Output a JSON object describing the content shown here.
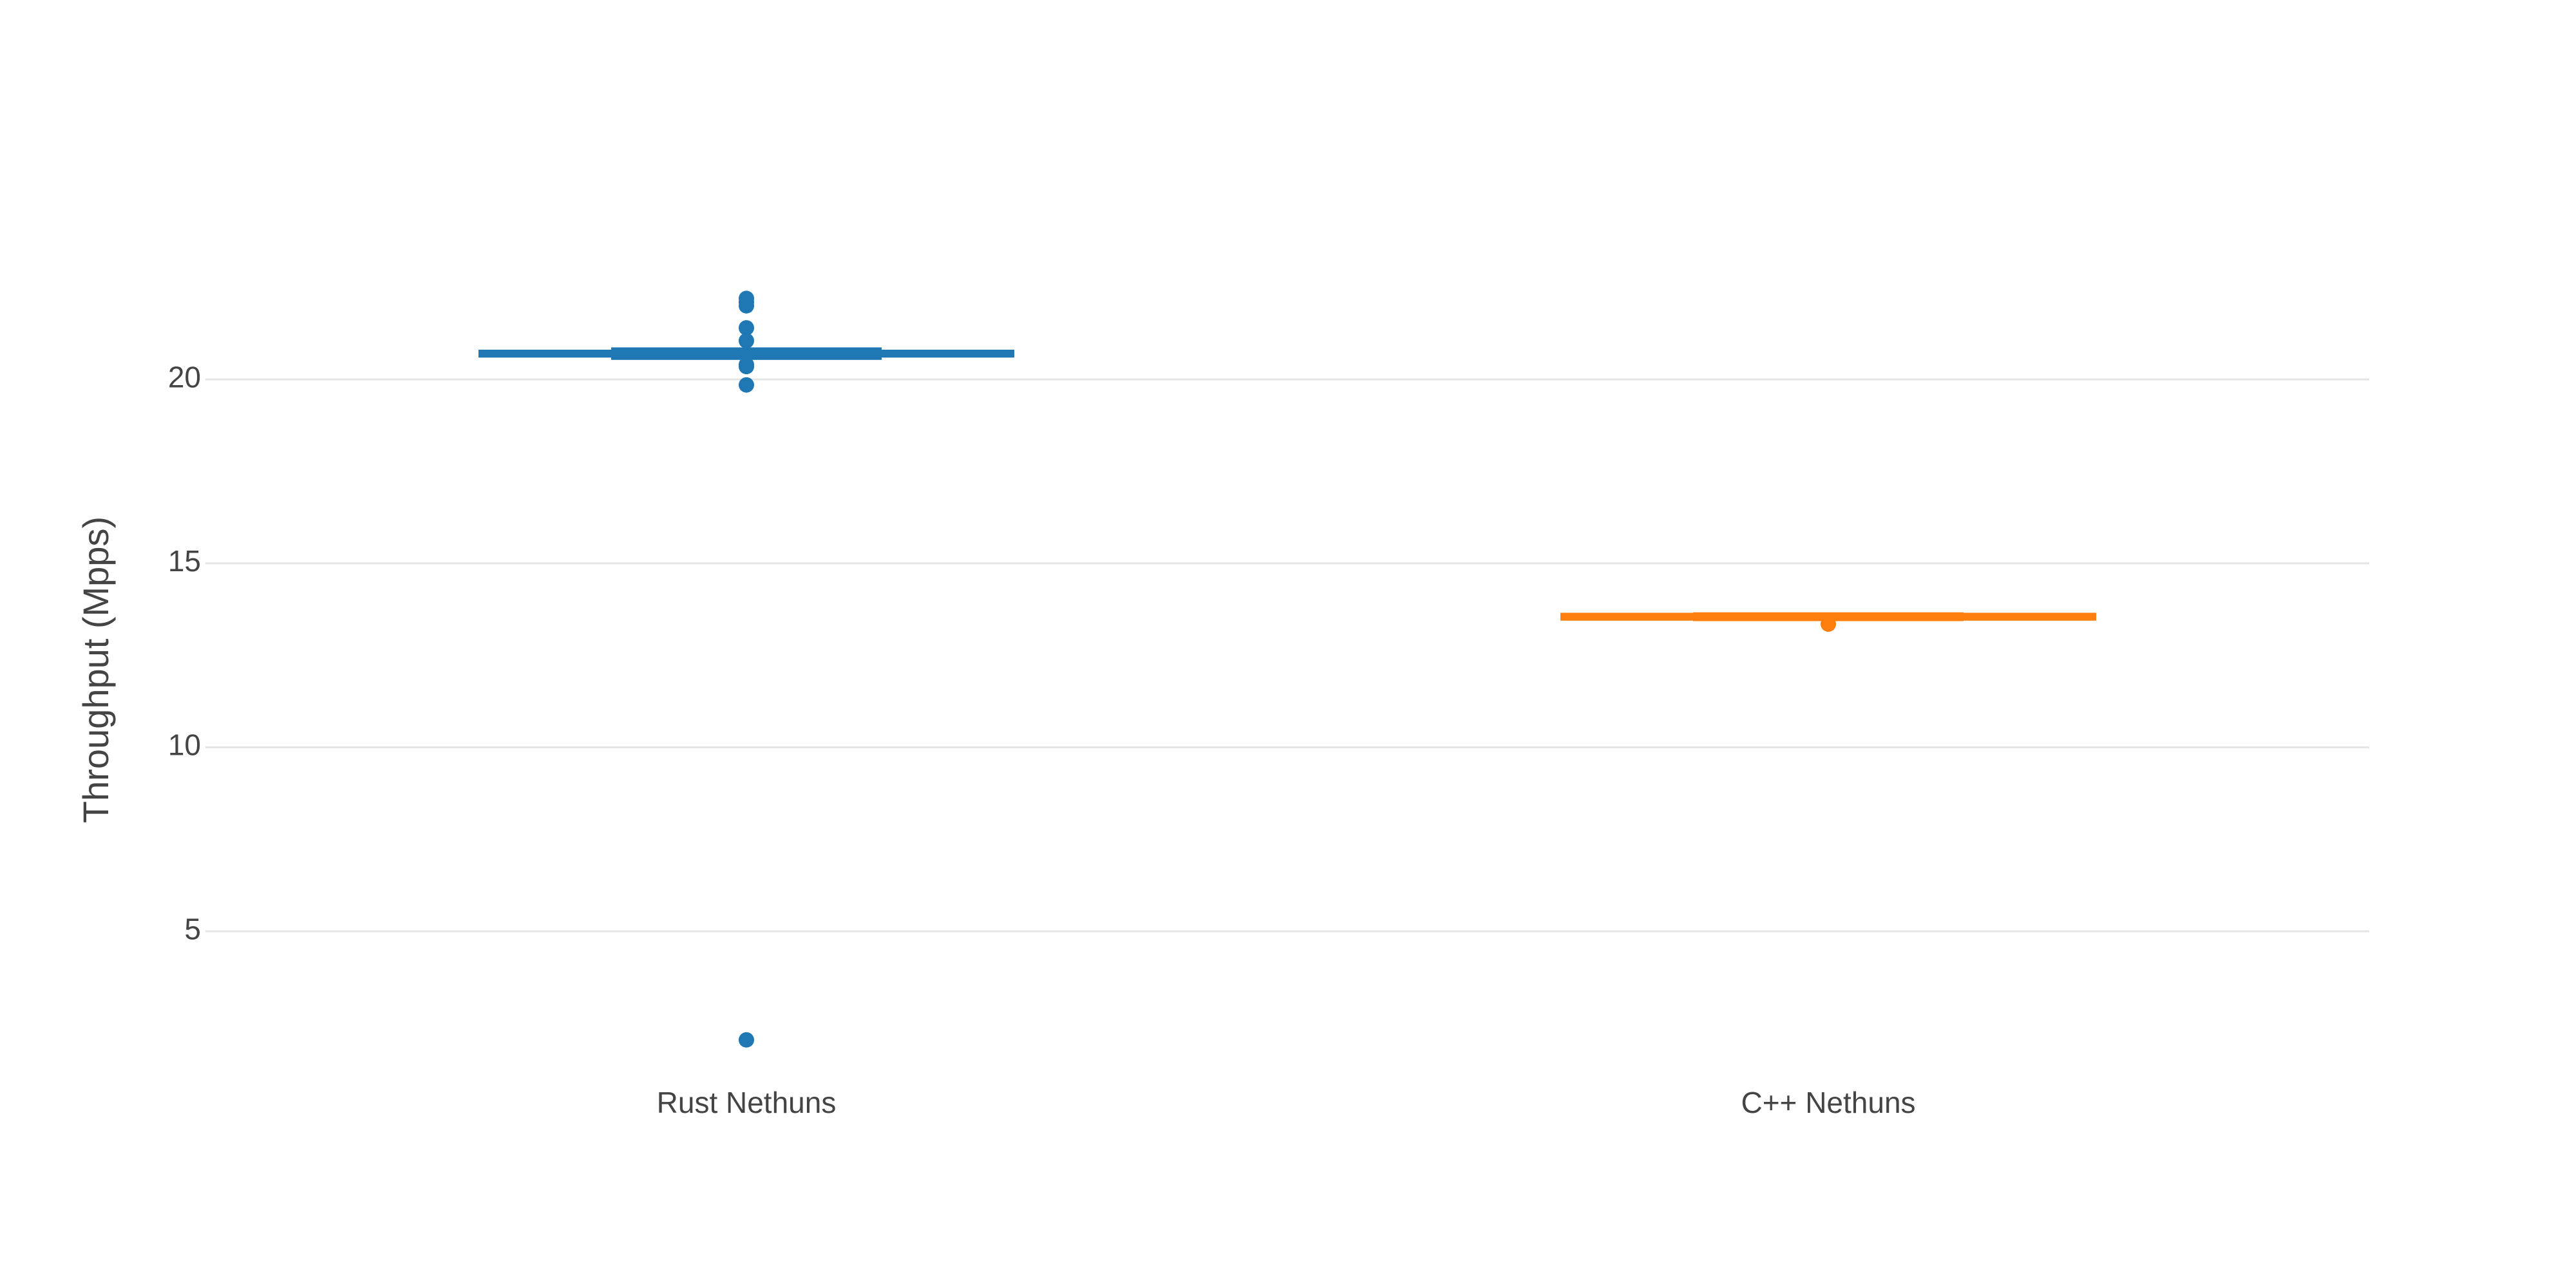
{
  "chart_data": {
    "type": "box",
    "y_label": "Throughput (Mpps)",
    "categories": [
      "Rust Nethuns",
      "C++ Nethuns"
    ],
    "series": [
      {
        "name": "Rust Nethuns",
        "color": "#1f77b4",
        "lowerfence": 20.68,
        "q1": 20.6,
        "median": 20.7,
        "q3": 20.8,
        "upperfence": 20.72,
        "outliers": [
          22.2,
          22.1,
          22.0,
          21.4,
          21.05,
          20.4,
          20.35,
          19.85,
          2.05
        ]
      },
      {
        "name": "C++ Nethuns",
        "color": "#ff7f0e",
        "lowerfence": 13.53,
        "q1": 13.5,
        "median": 13.55,
        "q3": 13.6,
        "upperfence": 13.57,
        "outliers": [
          13.35
        ]
      }
    ],
    "ylim": [
      1.1,
      23.1
    ],
    "yticks": [
      5,
      10,
      15,
      20
    ],
    "grid": true
  }
}
